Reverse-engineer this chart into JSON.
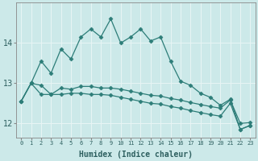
{
  "xlabel": "Humidex (Indice chaleur)",
  "x_labels": [
    "0",
    "1",
    "2",
    "3",
    "4",
    "5",
    "6",
    "7",
    "8",
    "9",
    "10",
    "11",
    "12",
    "13",
    "14",
    "15",
    "16",
    "17",
    "18",
    "19",
    "20",
    "21",
    "22",
    "23"
  ],
  "x_values": [
    0,
    1,
    2,
    3,
    4,
    5,
    6,
    7,
    8,
    9,
    10,
    11,
    12,
    13,
    14,
    15,
    16,
    17,
    18,
    19,
    20,
    21,
    22,
    23
  ],
  "line_max": [
    12.55,
    13.0,
    13.55,
    13.25,
    13.85,
    13.6,
    14.15,
    14.35,
    14.15,
    14.6,
    14.0,
    14.15,
    14.35,
    14.05,
    14.15,
    13.55,
    13.05,
    12.95,
    12.75,
    12.65,
    12.45,
    12.6,
    11.85,
    11.95
  ],
  "line_mean": [
    12.55,
    13.0,
    12.95,
    12.72,
    12.88,
    12.85,
    12.92,
    12.92,
    12.88,
    12.88,
    12.85,
    12.8,
    12.75,
    12.7,
    12.68,
    12.62,
    12.58,
    12.52,
    12.47,
    12.42,
    12.38,
    12.58,
    12.0,
    12.02
  ],
  "line_min": [
    12.55,
    13.0,
    12.72,
    12.72,
    12.72,
    12.75,
    12.75,
    12.72,
    12.72,
    12.7,
    12.65,
    12.6,
    12.55,
    12.5,
    12.48,
    12.42,
    12.38,
    12.32,
    12.27,
    12.22,
    12.18,
    12.5,
    11.85,
    11.95
  ],
  "ylim": [
    11.65,
    15.0
  ],
  "yticks": [
    12,
    13,
    14
  ],
  "bg_color": "#cce9e9",
  "grid_color": "#e8f5f5",
  "line_color": "#2d7d78",
  "marker": "D",
  "marker_size": 2.5,
  "linewidth": 0.9
}
